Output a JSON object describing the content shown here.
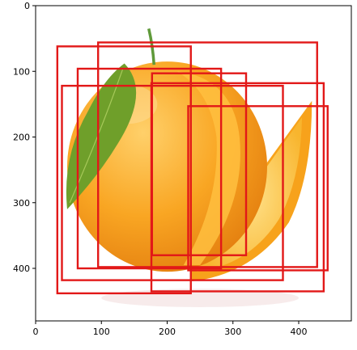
{
  "chart_data": {
    "type": "image-with-boxes",
    "xlim": [
      0,
      480
    ],
    "ylim": [
      480,
      0
    ],
    "x_ticks": [
      0,
      100,
      200,
      300,
      400
    ],
    "y_ticks": [
      0,
      100,
      200,
      300,
      400
    ],
    "image": {
      "subject-icon": "orange-fruit-with-leaf-and-slice",
      "background": "#ffffff",
      "colors": {
        "peel": "#f7a21b",
        "peel_light": "#ffc040",
        "flesh": "#fbd25a",
        "leaf": "#6f9f2a",
        "stem": "#5f9a3a"
      }
    },
    "box_color": "#e21818",
    "boxes": [
      {
        "x1": 33,
        "y1": 62,
        "x2": 236,
        "y2": 438
      },
      {
        "x1": 95,
        "y1": 56,
        "x2": 428,
        "y2": 398
      },
      {
        "x1": 64,
        "y1": 96,
        "x2": 282,
        "y2": 400
      },
      {
        "x1": 40,
        "y1": 122,
        "x2": 376,
        "y2": 418
      },
      {
        "x1": 177,
        "y1": 103,
        "x2": 320,
        "y2": 380
      },
      {
        "x1": 176,
        "y1": 118,
        "x2": 438,
        "y2": 435
      },
      {
        "x1": 232,
        "y1": 153,
        "x2": 444,
        "y2": 403
      }
    ]
  }
}
